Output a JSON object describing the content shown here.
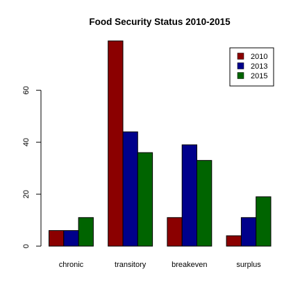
{
  "chart_data": {
    "type": "bar",
    "title": "Food Security Status 2010-2015",
    "xlabel": "",
    "ylabel": "",
    "categories": [
      "chronic",
      "transitory",
      "breakeven",
      "surplus"
    ],
    "series": [
      {
        "name": "2010",
        "values": [
          6,
          79,
          11,
          4
        ],
        "color": "#8B0000"
      },
      {
        "name": "2013",
        "values": [
          6,
          44,
          39,
          11
        ],
        "color": "#00008B"
      },
      {
        "name": "2015",
        "values": [
          11,
          36,
          33,
          19
        ],
        "color": "#006400"
      }
    ],
    "ylim": [
      0,
      79
    ],
    "yticks": [
      0,
      20,
      40,
      60
    ],
    "grid": false,
    "legend_position": "top-right",
    "bar_border_color": "#000000"
  }
}
